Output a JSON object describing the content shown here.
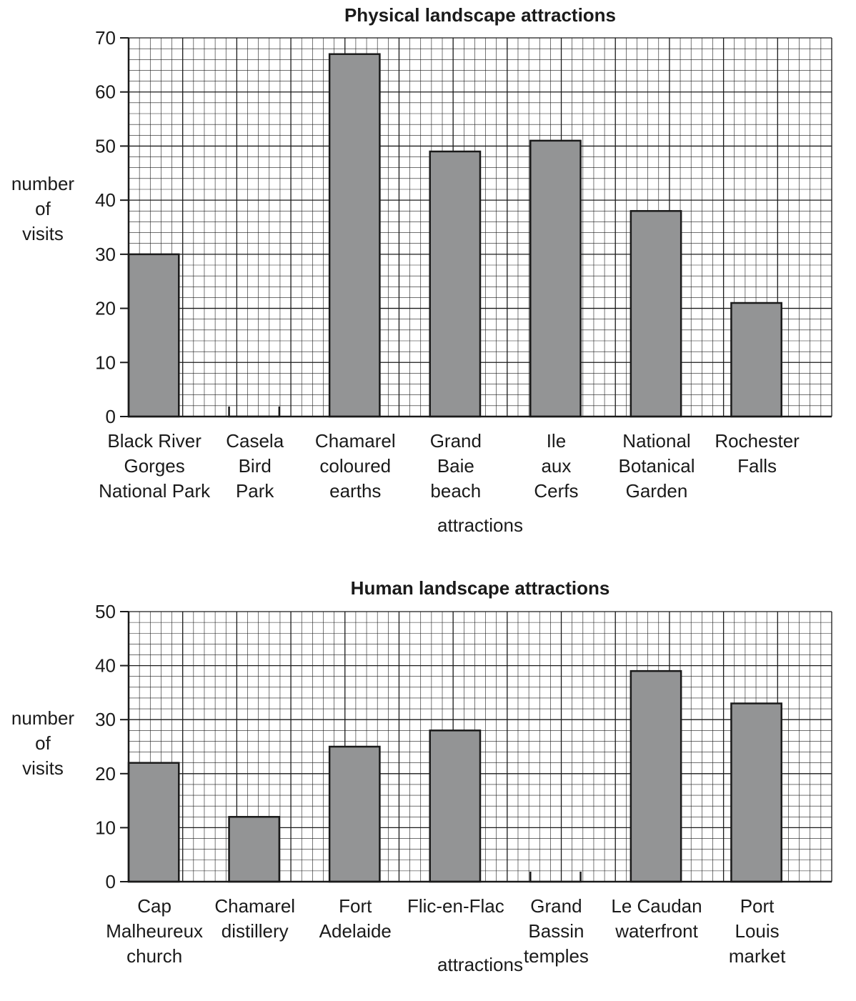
{
  "chart_data": [
    {
      "id": "physical",
      "type": "bar",
      "title": "Physical landscape attractions",
      "xlabel": "attractions",
      "ylabel": "number\nof\nvisits",
      "ylim": [
        0,
        70
      ],
      "major_step": 10,
      "minor_step": 2,
      "grid": true,
      "categories": [
        "Black River\nGorges\nNational Park",
        "Casela\nBird\nPark",
        "Chamarel\ncoloured\nearths",
        "Grand\nBaie\nbeach",
        "Ile\naux\nCerfs",
        "National\nBotanical\nGarden",
        "Rochester\nFalls"
      ],
      "values": [
        30,
        0,
        67,
        49,
        51,
        38,
        21
      ],
      "bar_color": "#939495"
    },
    {
      "id": "human",
      "type": "bar",
      "title": "Human landscape attractions",
      "xlabel": "attractions",
      "ylabel": "number\nof\nvisits",
      "ylim": [
        0,
        50
      ],
      "major_step": 10,
      "minor_step": 2,
      "grid": true,
      "categories": [
        "Cap\nMalheureux\nchurch",
        "Chamarel\ndistillery",
        "Fort\nAdelaide",
        "Flic-en-Flac",
        "Grand\nBassin\ntemples",
        "Le Caudan\nwaterfront",
        "Port\nLouis\nmarket"
      ],
      "values": [
        22,
        12,
        25,
        28,
        0,
        39,
        33
      ],
      "bar_color": "#939495"
    }
  ]
}
